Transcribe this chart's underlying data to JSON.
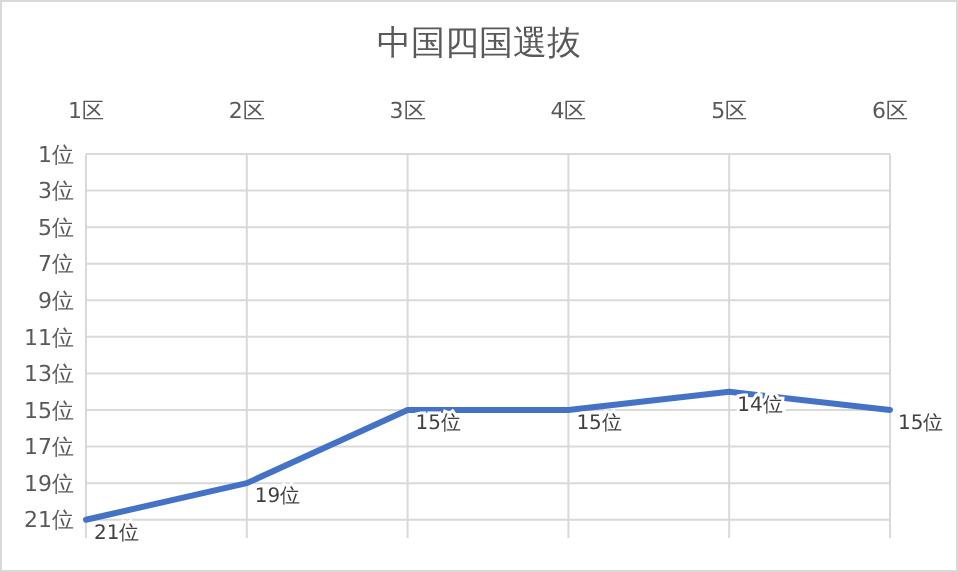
{
  "chart_data": {
    "type": "line",
    "title": "中国四国選抜",
    "categories": [
      "1区",
      "2区",
      "3区",
      "4区",
      "5区",
      "6区"
    ],
    "series": [
      {
        "color": "#4472c4",
        "values": [
          21,
          19,
          15,
          15,
          14,
          15
        ],
        "value_labels": [
          "21位",
          "19位",
          "15位",
          "15位",
          "14位",
          "15位"
        ]
      }
    ],
    "ylim": [
      22,
      1
    ],
    "yticks": [
      {
        "value": 1,
        "label": "1位"
      },
      {
        "value": 3,
        "label": "3位"
      },
      {
        "value": 5,
        "label": "5位"
      },
      {
        "value": 7,
        "label": "7位"
      },
      {
        "value": 9,
        "label": "9位"
      },
      {
        "value": 11,
        "label": "11位"
      },
      {
        "value": 13,
        "label": "13位"
      },
      {
        "value": 15,
        "label": "15位"
      },
      {
        "value": 17,
        "label": "17位"
      },
      {
        "value": 19,
        "label": "19位"
      },
      {
        "value": 21,
        "label": "21位"
      }
    ],
    "grid": true,
    "marker": "none",
    "line_style": "solid"
  }
}
